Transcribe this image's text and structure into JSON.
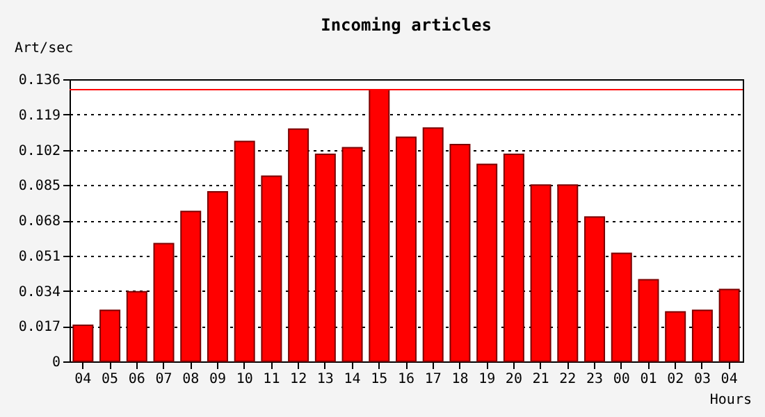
{
  "chart_data": {
    "type": "bar",
    "title": "Incoming articles",
    "ylabel": "Art/sec",
    "xlabel": "Hours",
    "categories": [
      "04",
      "05",
      "06",
      "07",
      "08",
      "09",
      "10",
      "11",
      "12",
      "13",
      "14",
      "15",
      "16",
      "17",
      "18",
      "19",
      "20",
      "21",
      "22",
      "23",
      "00",
      "01",
      "02",
      "03",
      "04"
    ],
    "series": [
      {
        "color": "#ff0000",
        "values": [
          0.0174,
          0.0246,
          0.0336,
          0.0568,
          0.0723,
          0.0817,
          0.106,
          0.0893,
          0.112,
          0.0998,
          0.103,
          0.131,
          0.108,
          0.1125,
          0.1045,
          0.095,
          0.0998,
          0.085,
          0.085,
          0.0696,
          0.0521,
          0.0394,
          0.0239,
          0.0246,
          0.0347
        ]
      }
    ],
    "ylim": [
      0,
      0.136
    ],
    "yticks": [
      0,
      0.017,
      0.034,
      0.051,
      0.068,
      0.085,
      0.102,
      0.119,
      0.136
    ],
    "ref_lines": [
      {
        "axis": "y",
        "value": 0.131,
        "color": "#ff0000"
      }
    ],
    "grid": "y"
  }
}
